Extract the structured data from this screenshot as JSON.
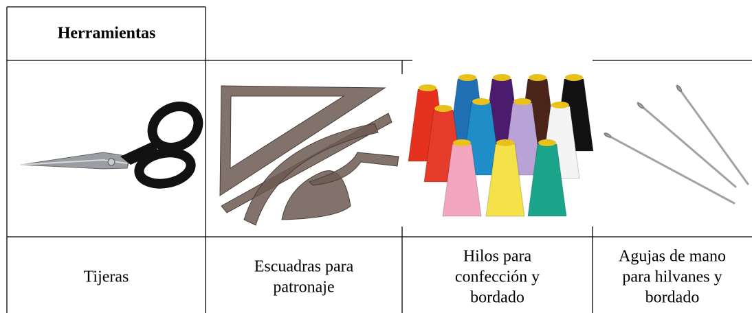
{
  "table": {
    "header": "Herramientas",
    "items": [
      {
        "label": [
          "Tijeras"
        ]
      },
      {
        "label": [
          "Escuadras para",
          "patronaje"
        ]
      },
      {
        "label": [
          "Hilos para",
          "confección y",
          "bordado"
        ]
      },
      {
        "label": [
          "Agujas de mano",
          "para hilvanes y",
          "bordado"
        ]
      }
    ]
  }
}
